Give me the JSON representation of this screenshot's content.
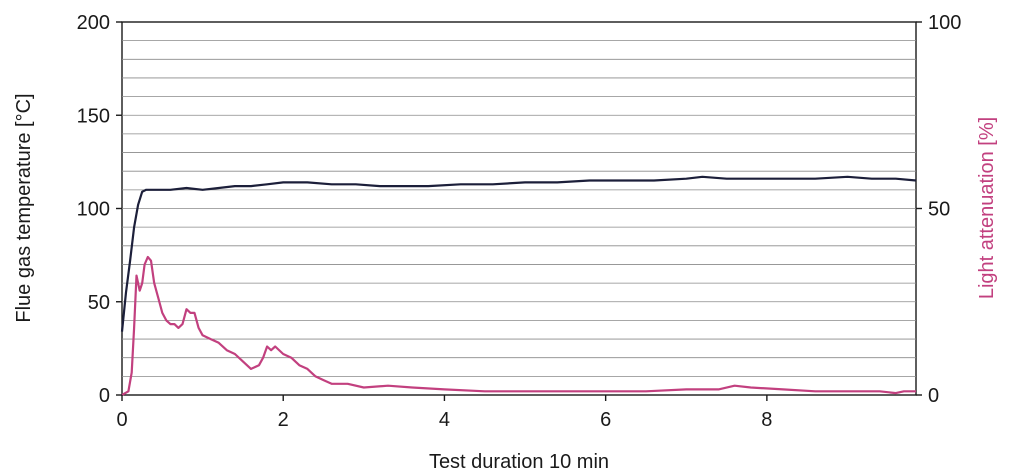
{
  "chart_data": {
    "type": "line",
    "title": "",
    "xlabel": "Test duration 10 min",
    "ylabel_left": "Flue gas temperature [°C]",
    "ylabel_right": "Light attenuation [%]",
    "xlim": [
      0,
      9.85
    ],
    "ylim_left": [
      0,
      200
    ],
    "ylim_right": [
      0,
      100
    ],
    "x_ticks": [
      0,
      2,
      4,
      6,
      8
    ],
    "y_ticks_left": [
      0,
      50,
      100,
      150,
      200
    ],
    "y_ticks_right": [
      0,
      50,
      100
    ],
    "horizontal_grid_step_left": 10,
    "grid": true,
    "legend": "none",
    "colors": {
      "temperature": "#1c1f3a",
      "attenuation": "#c2407f",
      "grid": "#8a8a8a",
      "right_axis_label": "#c2407f"
    },
    "series": [
      {
        "axis": "left",
        "color": "#1c1f3a",
        "x": [
          0,
          0.05,
          0.1,
          0.15,
          0.2,
          0.25,
          0.3,
          0.4,
          0.6,
          0.8,
          1.0,
          1.2,
          1.4,
          1.6,
          1.8,
          2.0,
          2.3,
          2.6,
          2.9,
          3.2,
          3.5,
          3.8,
          4.2,
          4.6,
          5.0,
          5.4,
          5.8,
          6.2,
          6.6,
          7.0,
          7.2,
          7.5,
          7.8,
          8.2,
          8.6,
          9.0,
          9.3,
          9.6,
          9.85
        ],
        "y": [
          34,
          55,
          72,
          90,
          102,
          109,
          110,
          110,
          110,
          111,
          110,
          111,
          112,
          112,
          113,
          114,
          114,
          113,
          113,
          112,
          112,
          112,
          113,
          113,
          114,
          114,
          115,
          115,
          115,
          116,
          117,
          116,
          116,
          116,
          116,
          117,
          116,
          116,
          115
        ]
      },
      {
        "axis": "right",
        "color": "#c2407f",
        "x": [
          0,
          0.08,
          0.12,
          0.15,
          0.18,
          0.22,
          0.25,
          0.28,
          0.32,
          0.36,
          0.4,
          0.45,
          0.5,
          0.55,
          0.6,
          0.65,
          0.7,
          0.75,
          0.8,
          0.85,
          0.9,
          0.95,
          1.0,
          1.1,
          1.2,
          1.3,
          1.4,
          1.5,
          1.6,
          1.7,
          1.75,
          1.8,
          1.85,
          1.9,
          2.0,
          2.1,
          2.2,
          2.3,
          2.4,
          2.5,
          2.6,
          2.8,
          3.0,
          3.3,
          3.6,
          4.0,
          4.5,
          5.0,
          5.5,
          6.0,
          6.5,
          7.0,
          7.4,
          7.6,
          7.8,
          8.2,
          8.6,
          9.0,
          9.4,
          9.6,
          9.7,
          9.85
        ],
        "y": [
          0,
          1,
          6,
          18,
          32,
          28,
          30,
          35,
          37,
          36,
          30,
          26,
          22,
          20,
          19,
          19,
          18,
          19,
          23,
          22,
          22,
          18,
          16,
          15,
          14,
          12,
          11,
          9,
          7,
          8,
          10,
          13,
          12,
          13,
          11,
          10,
          8,
          7,
          5,
          4,
          3,
          3,
          2,
          2.5,
          2,
          1.5,
          1,
          1,
          1,
          1,
          1,
          1.5,
          1.5,
          2.5,
          2,
          1.5,
          1,
          1,
          1,
          0.5,
          1,
          1
        ]
      }
    ]
  }
}
